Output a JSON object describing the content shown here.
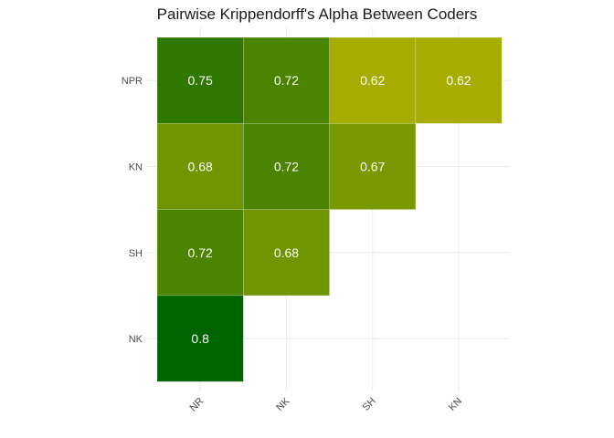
{
  "chart_data": {
    "type": "heatmap",
    "title": "Pairwise Krippendorff's Alpha Between Coders",
    "xlabel": "",
    "ylabel": "",
    "x_categories": [
      "NR",
      "NK",
      "SH",
      "KN"
    ],
    "y_categories": [
      "NPR",
      "KN",
      "SH",
      "NK"
    ],
    "cells": [
      {
        "x": "NR",
        "y": "NPR",
        "value": 0.75,
        "label": "0.75"
      },
      {
        "x": "NK",
        "y": "NPR",
        "value": 0.72,
        "label": "0.72"
      },
      {
        "x": "SH",
        "y": "NPR",
        "value": 0.62,
        "label": "0.62"
      },
      {
        "x": "KN",
        "y": "NPR",
        "value": 0.62,
        "label": "0.62"
      },
      {
        "x": "NR",
        "y": "KN",
        "value": 0.68,
        "label": "0.68"
      },
      {
        "x": "NK",
        "y": "KN",
        "value": 0.72,
        "label": "0.72"
      },
      {
        "x": "SH",
        "y": "KN",
        "value": 0.67,
        "label": "0.67"
      },
      {
        "x": "NR",
        "y": "SH",
        "value": 0.72,
        "label": "0.72"
      },
      {
        "x": "NK",
        "y": "SH",
        "value": 0.68,
        "label": "0.68"
      },
      {
        "x": "NR",
        "y": "NK",
        "value": 0.8,
        "label": "0.8"
      }
    ],
    "color_scale": {
      "low": "#a6ad00",
      "high": "#006400",
      "min": 0.62,
      "max": 0.8
    },
    "grid": true,
    "legend": "none"
  }
}
